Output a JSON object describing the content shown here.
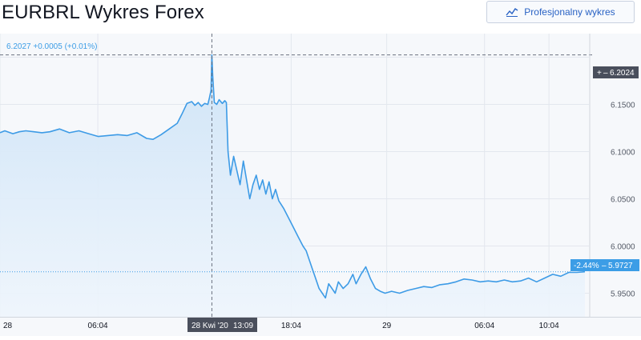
{
  "header": {
    "title": "EURBRL Wykres Forex",
    "pro_button_label": "Profesjonalny wykres",
    "pro_button_icon": "chart-line-icon"
  },
  "quote": {
    "price": "6.2027",
    "change": "+0.0005",
    "change_pct": "(+0.01%)"
  },
  "crosshair": {
    "price_label": "6.2024",
    "price_prefix": "+",
    "date_label": "28 Kwi '20",
    "time_label": "13:09"
  },
  "last_price": {
    "pct": "-2.44%",
    "value": "5.9727"
  },
  "colors": {
    "line": "#3d9be6",
    "area": "#d7e8f8",
    "grid": "#e3e7ee",
    "axis_text": "#545a66",
    "label_dark": "#4a4f5c",
    "label_blue": "#3c9de6",
    "pro_button_text": "#2962c4",
    "background": "#f6f8fb"
  },
  "chart_data": {
    "type": "area",
    "x_unit": "hours from 28 Apr 2020 00:00",
    "x_ticks": [
      {
        "label": "28",
        "x": 0
      },
      {
        "label": "06:04",
        "x": 6.07
      },
      {
        "label": "18:04",
        "x": 18.07
      },
      {
        "label": "29",
        "x": 24
      },
      {
        "label": "06:04",
        "x": 30.07
      },
      {
        "label": "10:04",
        "x": 34.07
      }
    ],
    "y_ticks": [
      5.95,
      6.0,
      6.05,
      6.1,
      6.15
    ],
    "y_tick_labels": [
      "5.9500",
      "6.0000",
      "6.0500",
      "6.1000",
      "6.1500"
    ],
    "ylim": [
      5.925,
      6.225
    ],
    "xlim": [
      0,
      36.3
    ],
    "crosshair": {
      "x": 13.15,
      "y": 6.2024
    },
    "last": 5.9727,
    "grid": true,
    "series": [
      {
        "x": [
          0,
          0.3,
          0.8,
          1.2,
          1.6,
          2.1,
          2.6,
          3.1,
          3.7,
          4.3,
          4.9,
          5.5,
          6.1,
          6.7,
          7.3,
          7.9,
          8.5,
          9.1,
          9.5,
          10.0,
          10.5,
          11.0,
          11.3,
          11.6,
          11.9,
          12.1,
          12.3,
          12.5,
          12.7,
          12.9,
          13.0,
          13.1,
          13.15,
          13.2,
          13.3,
          13.45,
          13.6,
          13.8,
          13.95,
          14.05,
          14.15,
          14.3,
          14.5,
          14.7,
          14.9,
          15.1,
          15.3,
          15.5,
          15.7,
          15.9,
          16.1,
          16.3,
          16.5,
          16.7,
          16.9,
          17.1,
          17.3,
          17.6,
          17.9,
          18.2,
          18.5,
          18.8,
          19.0,
          19.2,
          19.4,
          19.6,
          19.8,
          20.0,
          20.2,
          20.4,
          20.6,
          20.8,
          21.0,
          21.3,
          21.6,
          21.9,
          22.1,
          22.4,
          22.7,
          23.0,
          23.3,
          23.6,
          23.9,
          24.3,
          24.8,
          25.3,
          25.8,
          26.3,
          26.8,
          27.3,
          27.8,
          28.3,
          28.8,
          29.3,
          29.8,
          30.3,
          30.8,
          31.3,
          31.8,
          32.3,
          32.8,
          33.3,
          33.8,
          34.3,
          34.8,
          35.3,
          35.8,
          36.3
        ],
        "values": [
          6.12,
          6.122,
          6.119,
          6.121,
          6.122,
          6.121,
          6.12,
          6.121,
          6.124,
          6.12,
          6.122,
          6.119,
          6.116,
          6.117,
          6.118,
          6.117,
          6.12,
          6.114,
          6.113,
          6.118,
          6.124,
          6.13,
          6.14,
          6.151,
          6.153,
          6.149,
          6.152,
          6.148,
          6.151,
          6.15,
          6.157,
          6.165,
          6.2024,
          6.18,
          6.152,
          6.15,
          6.155,
          6.151,
          6.154,
          6.152,
          6.1,
          6.075,
          6.095,
          6.08,
          6.065,
          6.09,
          6.07,
          6.05,
          6.065,
          6.075,
          6.06,
          6.07,
          6.055,
          6.068,
          6.05,
          6.06,
          6.048,
          6.04,
          6.03,
          6.02,
          6.01,
          6.0,
          5.995,
          5.985,
          5.975,
          5.965,
          5.955,
          5.95,
          5.945,
          5.96,
          5.955,
          5.95,
          5.962,
          5.955,
          5.96,
          5.97,
          5.96,
          5.97,
          5.978,
          5.965,
          5.955,
          5.952,
          5.95,
          5.952,
          5.95,
          5.953,
          5.955,
          5.957,
          5.956,
          5.959,
          5.96,
          5.962,
          5.965,
          5.964,
          5.962,
          5.963,
          5.962,
          5.964,
          5.962,
          5.963,
          5.966,
          5.962,
          5.966,
          5.97,
          5.968,
          5.972,
          5.972,
          5.9727
        ]
      }
    ]
  }
}
